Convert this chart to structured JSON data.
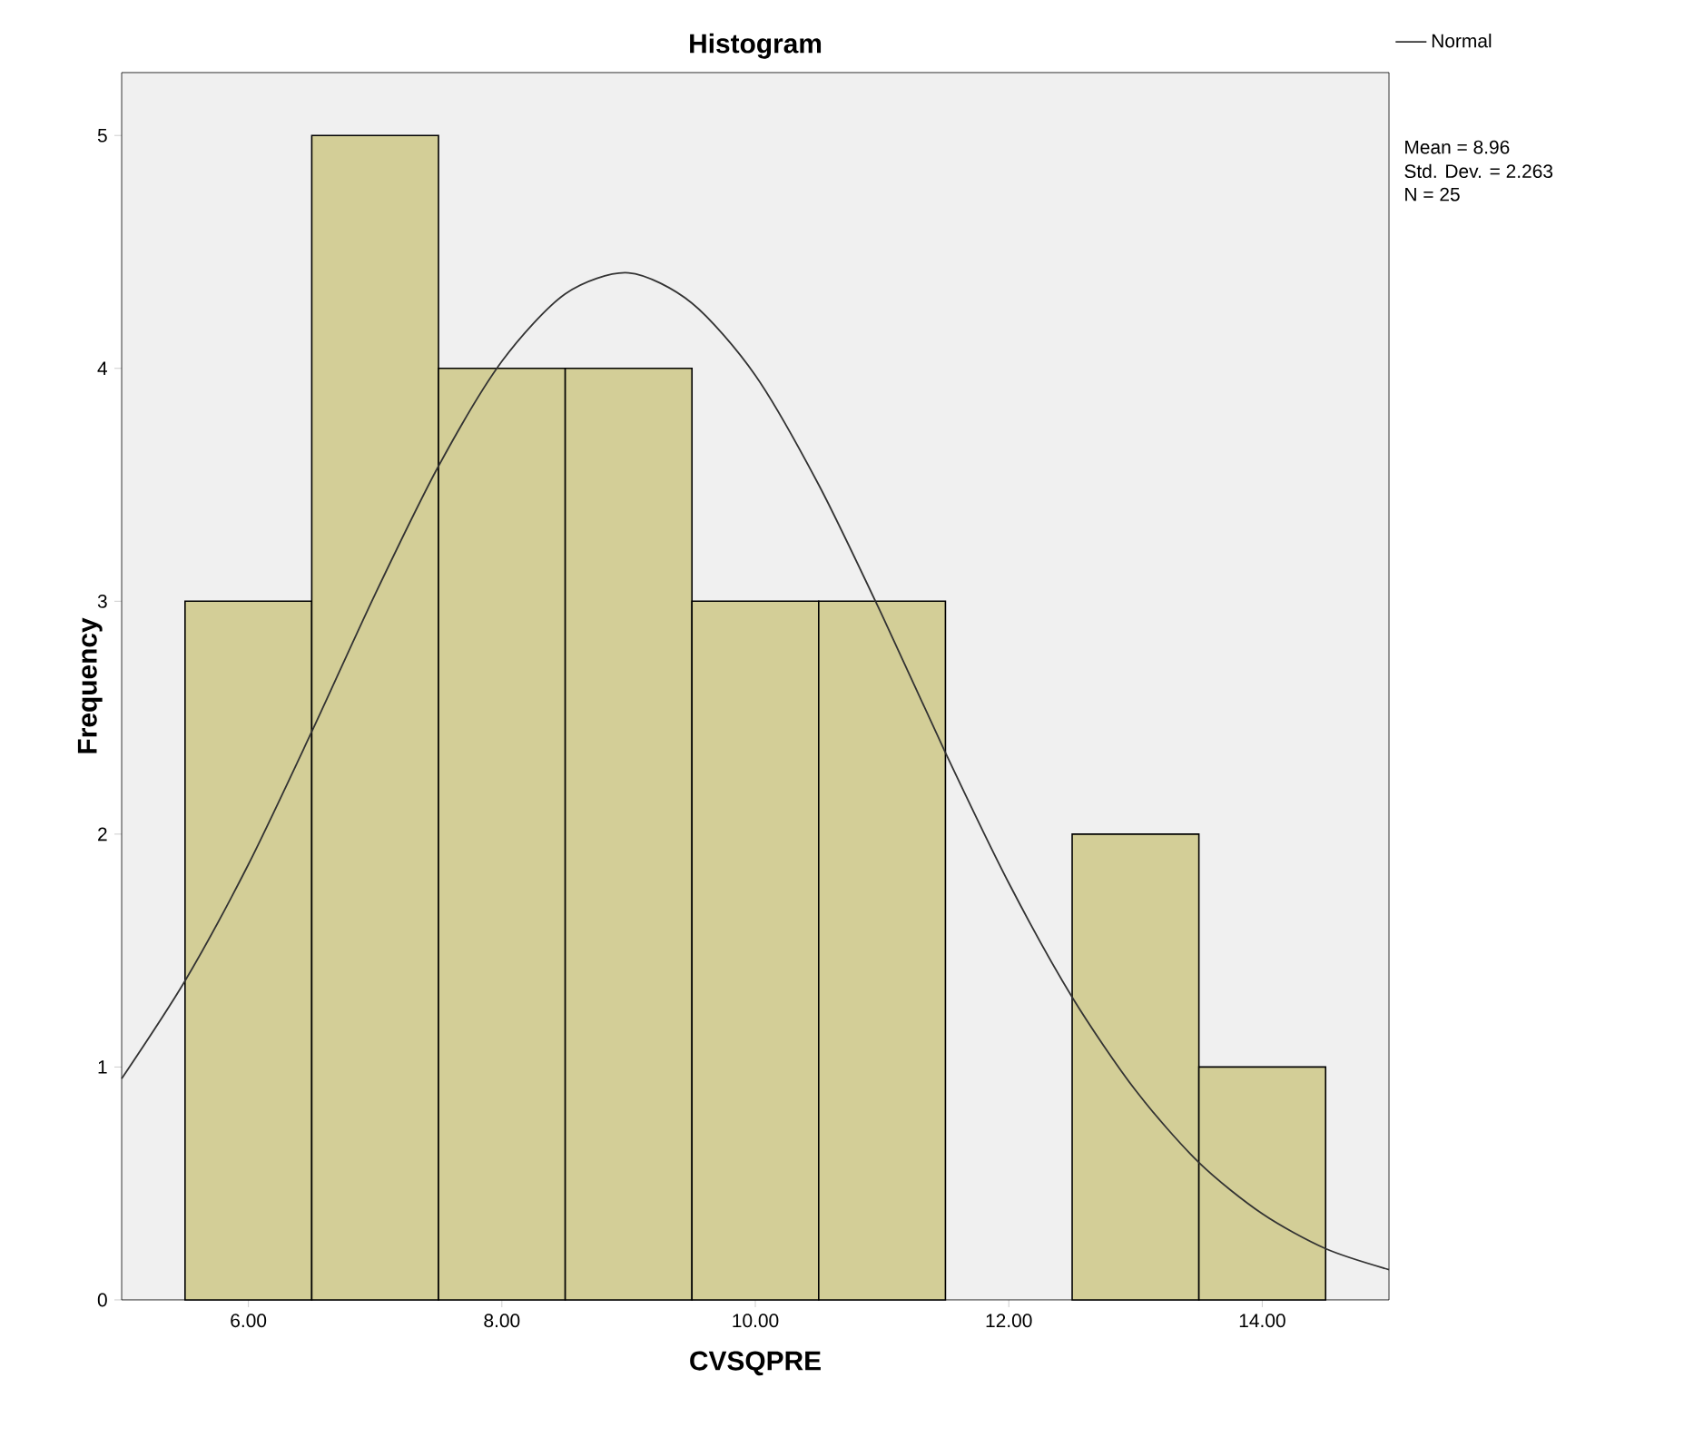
{
  "chart_data": {
    "type": "histogram",
    "title": "Histogram",
    "xlabel": "CVSQPRE",
    "ylabel": "Frequency",
    "bins": [
      5.5,
      6.5,
      7.5,
      8.5,
      9.5,
      10.5,
      11.5,
      12.5,
      13.5,
      14.5
    ],
    "values": [
      3,
      5,
      4,
      4,
      3,
      3,
      0,
      2,
      1
    ],
    "color": "#d3ce97",
    "series": [
      {
        "name": "Normal",
        "type": "line",
        "color": "#333333",
        "x": [
          5,
          5.5,
          6,
          6.5,
          7,
          7.5,
          8,
          8.5,
          9,
          9.5,
          10,
          10.5,
          11,
          11.5,
          12,
          12.5,
          13,
          13.5,
          14,
          14.5,
          15
        ],
        "values": [
          0.95,
          1.37,
          1.87,
          2.44,
          3.03,
          3.58,
          4.03,
          4.32,
          4.41,
          4.28,
          3.97,
          3.5,
          2.94,
          2.35,
          1.79,
          1.3,
          0.9,
          0.59,
          0.37,
          0.22,
          0.13
        ]
      }
    ],
    "xlim": [
      5,
      15
    ],
    "ylim": [
      0,
      5.27
    ],
    "xticks": [
      {
        "value": 6,
        "label": "6.00"
      },
      {
        "value": 8,
        "label": "8.00"
      },
      {
        "value": 10,
        "label": "10.00"
      },
      {
        "value": 12,
        "label": "12.00"
      },
      {
        "value": 14,
        "label": "14.00"
      }
    ],
    "yticks": [
      0,
      1,
      2,
      3,
      4,
      5
    ],
    "legend": "top right",
    "grid": false,
    "annotations": [
      "Mean = 8.96",
      "Std. Dev. = 2.263",
      "N = 25"
    ]
  }
}
